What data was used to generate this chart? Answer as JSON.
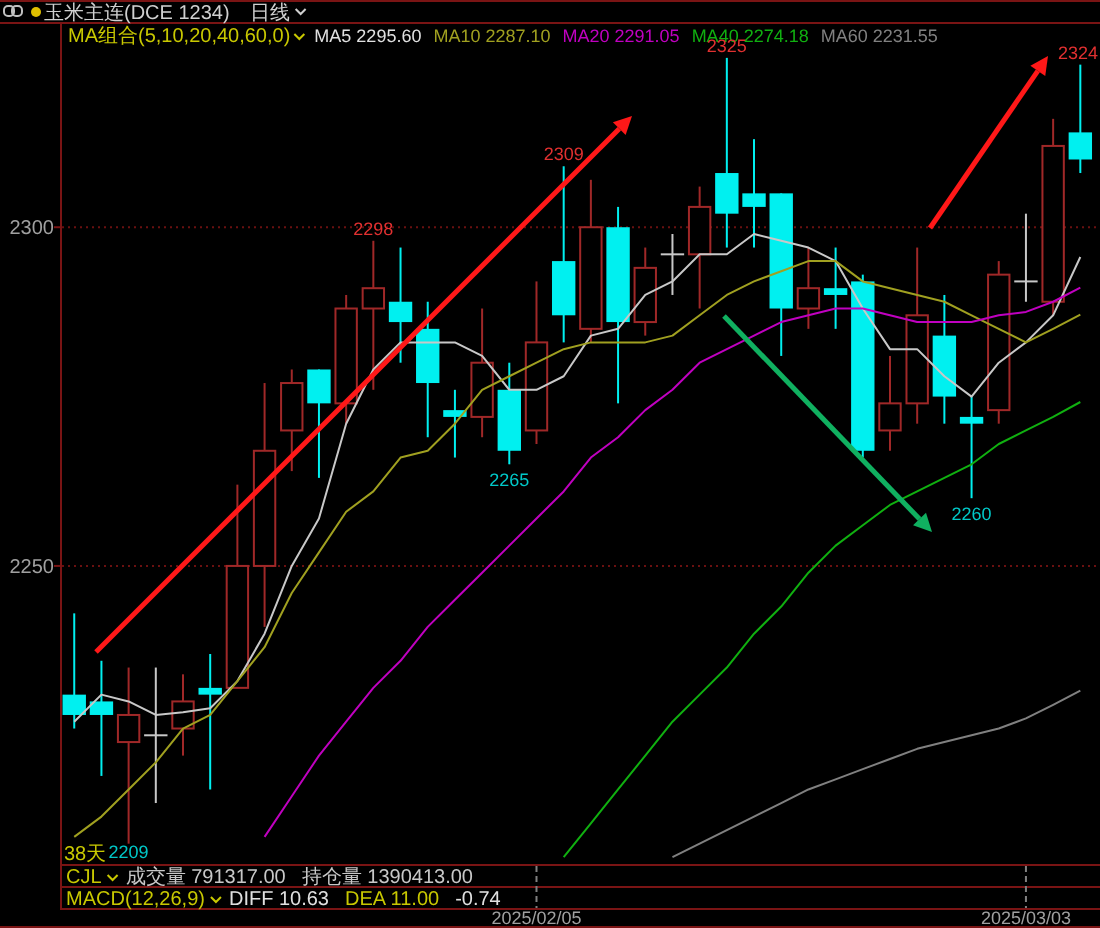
{
  "chart_data": {
    "type": "candlestick",
    "title": "玉米主连(DCE 1234)",
    "subtitle": "日线",
    "legend_title": "MA组合(5,10,20,40,60,0)",
    "grid": "y",
    "ylim": [
      2206,
      2330
    ],
    "yticks": [
      2250,
      2300
    ],
    "categories": [
      null,
      null,
      null,
      null,
      null,
      null,
      null,
      null,
      null,
      null,
      null,
      null,
      null,
      null,
      null,
      null,
      null,
      "2025/02/05",
      null,
      null,
      null,
      null,
      null,
      null,
      null,
      null,
      null,
      null,
      null,
      null,
      null,
      null,
      null,
      null,
      null,
      "2025/03/03",
      null,
      null
    ],
    "ohlc": [
      [
        2231,
        2243,
        2226,
        2228
      ],
      [
        2230,
        2236,
        2219,
        2228
      ],
      [
        2224,
        2235,
        2209,
        2228
      ],
      [
        2225,
        2235,
        2215,
        2225
      ],
      [
        2226,
        2234,
        2222,
        2230
      ],
      [
        2232,
        2237,
        2217,
        2231
      ],
      [
        2232,
        2262,
        2232,
        2250
      ],
      [
        2250,
        2277,
        2241,
        2267
      ],
      [
        2270,
        2279,
        2264,
        2277
      ],
      [
        2279,
        2279,
        2263,
        2274
      ],
      [
        2274,
        2290,
        2271,
        2288
      ],
      [
        2288,
        2298,
        2276,
        2291
      ],
      [
        2289,
        2297,
        2280,
        2286
      ],
      [
        2285,
        2289,
        2269,
        2277
      ],
      [
        2273,
        2276,
        2266,
        2272
      ],
      [
        2272,
        2288,
        2269,
        2280
      ],
      [
        2276,
        2280,
        2265,
        2267
      ],
      [
        2270,
        2292,
        2268,
        2283
      ],
      [
        2295,
        2309,
        2283,
        2287
      ],
      [
        2285,
        2307,
        2283,
        2300
      ],
      [
        2300,
        2303,
        2274,
        2286
      ],
      [
        2286,
        2297,
        2284,
        2294
      ],
      [
        2296,
        2299,
        2290,
        2296
      ],
      [
        2296,
        2306,
        2288,
        2303
      ],
      [
        2308,
        2325,
        2297,
        2302
      ],
      [
        2305,
        2313,
        2297,
        2303
      ],
      [
        2305,
        2305,
        2281,
        2288
      ],
      [
        2288,
        2297,
        2285,
        2291
      ],
      [
        2291,
        2297,
        2285,
        2290
      ],
      [
        2292,
        2293,
        2266,
        2267
      ],
      [
        2270,
        2281,
        2267,
        2274
      ],
      [
        2274,
        2297,
        2271,
        2287
      ],
      [
        2284,
        2290,
        2271,
        2275
      ],
      [
        2272,
        2275,
        2260,
        2271
      ],
      [
        2273,
        2295,
        2271,
        2293
      ],
      [
        2292,
        2302,
        2289,
        2292
      ],
      [
        2289,
        2316,
        2287,
        2312
      ],
      [
        2314,
        2324,
        2308,
        2310
      ]
    ],
    "colors": [
      "#00f0f0",
      "#00f0f0",
      "#a02828",
      "#c8c8c8",
      "#a02828",
      "#00f0f0",
      "#a02828",
      "#a02828",
      "#a02828",
      "#00f0f0",
      "#a02828",
      "#a02828",
      "#00f0f0",
      "#00f0f0",
      "#00f0f0",
      "#a02828",
      "#00f0f0",
      "#a02828",
      "#00f0f0",
      "#a02828",
      "#00f0f0",
      "#a02828",
      "#c8c8c8",
      "#a02828",
      "#00f0f0",
      "#00f0f0",
      "#00f0f0",
      "#a02828",
      "#00f0f0",
      "#00f0f0",
      "#a02828",
      "#a02828",
      "#00f0f0",
      "#00f0f0",
      "#a02828",
      "#c8c8c8",
      "#a02828",
      "#00f0f0"
    ],
    "series": [
      {
        "name": "MA5 2295.60",
        "type": "line",
        "color": "#c8c8c8",
        "values": [
          2227,
          2231,
          2230,
          2228,
          2228.4,
          2229,
          2233,
          2240,
          2250,
          2257,
          2271,
          2279,
          2283,
          2283,
          2283,
          2281,
          2276,
          2276,
          2278,
          2284,
          2285,
          2290,
          2292,
          2296,
          2296,
          2299,
          2298,
          2297,
          2295,
          2288,
          2282,
          2282,
          2278,
          2275,
          2280,
          2283,
          2287,
          2295.6
        ]
      },
      {
        "name": "MA10 2287.10",
        "type": "line",
        "color": "#a0a020",
        "values": [
          2210,
          2213,
          2217,
          2221,
          2226,
          2228,
          2233,
          2238,
          2246,
          2252,
          2258,
          2261,
          2266,
          2267,
          2271,
          2276,
          2278,
          2280,
          2282,
          2283,
          2283,
          2283,
          2284,
          2287,
          2290,
          2292,
          2293.5,
          2295,
          2295,
          2292,
          2291,
          2290,
          2289,
          2287,
          2285,
          2283,
          2285,
          2287.1
        ]
      },
      {
        "name": "MA20 2291.05",
        "type": "line",
        "color": "#c000c0",
        "values": [
          null,
          null,
          null,
          null,
          null,
          null,
          null,
          2210,
          2216,
          2222,
          2227,
          2232,
          2236,
          2241,
          2245,
          2249,
          2253,
          2257,
          2261,
          2266,
          2269,
          2273,
          2276,
          2280,
          2282,
          2284,
          2286,
          2287,
          2288,
          2288,
          2287,
          2286,
          2286,
          2286,
          2287,
          2287.5,
          2289,
          2291.1
        ]
      },
      {
        "name": "MA40 2274.18",
        "type": "line",
        "color": "#10b010",
        "values": [
          null,
          null,
          null,
          null,
          null,
          null,
          null,
          null,
          null,
          null,
          null,
          null,
          null,
          null,
          null,
          null,
          null,
          null,
          2207,
          2212,
          2217,
          2222,
          2227,
          2231,
          2235,
          2240,
          2244,
          2249,
          2253,
          2256,
          2259,
          2261,
          2263,
          2265,
          2268,
          2270,
          2272,
          2274.2
        ]
      },
      {
        "name": "MA60 2231.55",
        "type": "line",
        "color": "#808080",
        "values": [
          null,
          null,
          null,
          null,
          null,
          null,
          null,
          null,
          null,
          null,
          null,
          null,
          null,
          null,
          null,
          null,
          null,
          null,
          null,
          null,
          null,
          null,
          2207,
          2209,
          2211,
          2213,
          2215,
          2217,
          2218.5,
          2220,
          2221.5,
          2223,
          2224,
          2225,
          2226,
          2227.5,
          2229.5,
          2231.6
        ]
      }
    ],
    "annotations": [
      {
        "text": "2298",
        "y": 2298
      },
      {
        "text": "2309",
        "y": 2309
      },
      {
        "text": "2325",
        "y": 2325
      },
      {
        "text": "2324",
        "y": 2324
      },
      {
        "text": "2265",
        "y": 2265
      },
      {
        "text": "2260",
        "y": 2260
      },
      {
        "text": "2209",
        "y": 2209
      },
      "38天",
      "CJL",
      "成交量 791317.00",
      "持仓量 1390413.00",
      "MACD(12,26,9)",
      "DIFF 10.63",
      "DEA 11.00",
      "-0.74"
    ]
  }
}
